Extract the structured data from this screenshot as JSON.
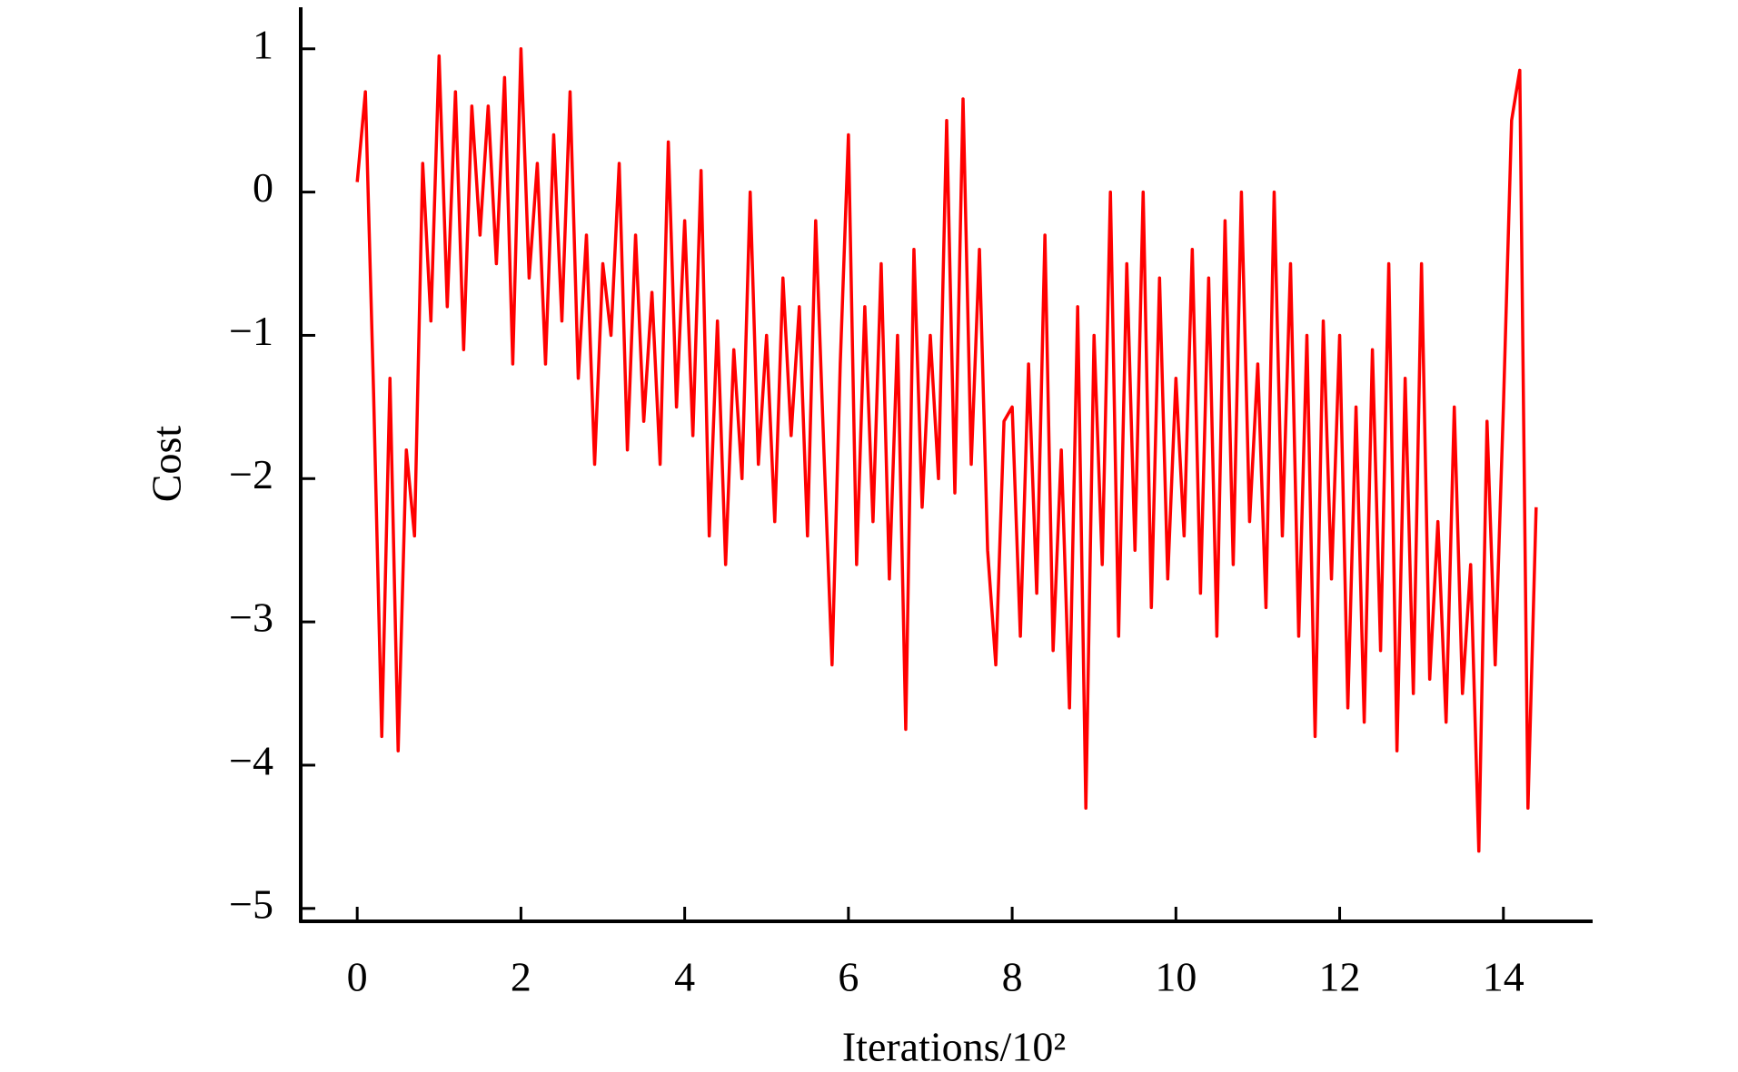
{
  "chart_data": {
    "type": "line",
    "xlabel": "Iterations/10²",
    "ylabel": "Cost",
    "xlim": [
      -0.69,
      15.09
    ],
    "ylim": [
      -5.09,
      1.29
    ],
    "xticks": [
      0,
      2,
      4,
      6,
      8,
      10,
      12,
      14
    ],
    "yticks": [
      {
        "value": -5,
        "label": "−5"
      },
      {
        "value": -4,
        "label": "−4"
      },
      {
        "value": -3,
        "label": "−3"
      },
      {
        "value": -2,
        "label": "−2"
      },
      {
        "value": -1,
        "label": "−1"
      },
      0,
      1
    ],
    "series": [
      {
        "color": "#ff0000",
        "x": [
          0.0,
          0.1,
          0.2,
          0.3,
          0.4,
          0.5,
          0.6,
          0.7,
          0.8,
          0.9,
          1.0,
          1.1,
          1.2,
          1.3,
          1.4,
          1.5,
          1.6,
          1.7,
          1.8,
          1.9,
          2.0,
          2.1,
          2.2,
          2.3,
          2.4,
          2.5,
          2.6,
          2.7,
          2.8,
          2.9,
          3.0,
          3.1,
          3.2,
          3.3,
          3.4,
          3.5,
          3.6,
          3.7,
          3.8,
          3.9,
          4.0,
          4.1,
          4.2,
          4.3,
          4.4,
          4.5,
          4.6,
          4.7,
          4.8,
          4.9,
          5.0,
          5.1,
          5.2,
          5.3,
          5.4,
          5.5,
          5.6,
          5.7,
          5.8,
          5.9,
          6.0,
          6.1,
          6.2,
          6.3,
          6.4,
          6.5,
          6.6,
          6.7,
          6.8,
          6.9,
          7.0,
          7.1,
          7.2,
          7.3,
          7.4,
          7.5,
          7.6,
          7.7,
          7.8,
          7.9,
          8.0,
          8.1,
          8.2,
          8.3,
          8.4,
          8.5,
          8.6,
          8.7,
          8.8,
          8.9,
          9.0,
          9.1,
          9.2,
          9.3,
          9.4,
          9.5,
          9.6,
          9.7,
          9.8,
          9.9,
          10.0,
          10.1,
          10.2,
          10.3,
          10.4,
          10.5,
          10.6,
          10.7,
          10.8,
          10.9,
          11.0,
          11.1,
          11.2,
          11.3,
          11.4,
          11.5,
          11.6,
          11.7,
          11.8,
          11.9,
          12.0,
          12.1,
          12.2,
          12.3,
          12.4,
          12.5,
          12.6,
          12.7,
          12.8,
          12.9,
          13.0,
          13.1,
          13.2,
          13.3,
          13.4,
          13.5,
          13.6,
          13.7,
          13.8,
          13.9,
          14.0,
          14.1,
          14.2,
          14.3,
          14.4
        ],
        "values": [
          0.07,
          0.7,
          -1.4,
          -3.8,
          -1.3,
          -3.9,
          -1.8,
          -2.4,
          0.2,
          -0.9,
          0.95,
          -0.8,
          0.7,
          -1.1,
          0.6,
          -0.3,
          0.6,
          -0.5,
          0.8,
          -1.2,
          1.0,
          -0.6,
          0.2,
          -1.2,
          0.4,
          -0.9,
          0.7,
          -1.3,
          -0.3,
          -1.9,
          -0.5,
          -1.0,
          0.2,
          -1.8,
          -0.3,
          -1.6,
          -0.7,
          -1.9,
          0.35,
          -1.5,
          -0.2,
          -1.7,
          0.15,
          -2.4,
          -0.9,
          -2.6,
          -1.1,
          -2.0,
          0.0,
          -1.9,
          -1.0,
          -2.3,
          -0.6,
          -1.7,
          -0.8,
          -2.4,
          -0.2,
          -1.8,
          -3.3,
          -1.2,
          0.4,
          -2.6,
          -0.8,
          -2.3,
          -0.5,
          -2.7,
          -1.0,
          -3.75,
          -0.4,
          -2.2,
          -1.0,
          -2.0,
          0.5,
          -2.1,
          0.65,
          -1.9,
          -0.4,
          -2.5,
          -3.3,
          -1.6,
          -1.5,
          -3.1,
          -1.2,
          -2.8,
          -0.3,
          -3.2,
          -1.8,
          -3.6,
          -0.8,
          -4.3,
          -1.0,
          -2.6,
          0.0,
          -3.1,
          -0.5,
          -2.5,
          0.0,
          -2.9,
          -0.6,
          -2.7,
          -1.3,
          -2.4,
          -0.4,
          -2.8,
          -0.6,
          -3.1,
          -0.2,
          -2.6,
          0.0,
          -2.3,
          -1.2,
          -2.9,
          0.0,
          -2.4,
          -0.5,
          -3.1,
          -1.0,
          -3.8,
          -0.9,
          -2.7,
          -1.0,
          -3.6,
          -1.5,
          -3.7,
          -1.1,
          -3.2,
          -0.5,
          -3.9,
          -1.3,
          -3.5,
          -0.5,
          -3.4,
          -2.3,
          -3.7,
          -1.5,
          -3.5,
          -2.6,
          -4.6,
          -1.6,
          -3.3,
          -1.5,
          0.5,
          0.85,
          -4.3,
          -2.2
        ]
      }
    ]
  }
}
